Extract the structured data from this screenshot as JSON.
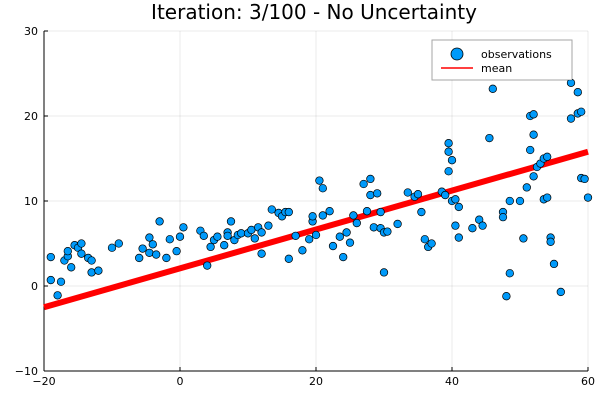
{
  "chart_data": {
    "type": "scatter",
    "title": "Iteration: 3/100 - No Uncertainty",
    "xlabel": "",
    "ylabel": "",
    "xlim": [
      -20,
      60
    ],
    "ylim": [
      -10,
      30
    ],
    "xticks": [
      -20,
      0,
      20,
      40,
      60
    ],
    "yticks": [
      -10,
      0,
      10,
      20,
      30
    ],
    "grid": true,
    "legend_position": "top-right",
    "series": [
      {
        "name": "observations",
        "kind": "scatter",
        "color": "#009AFA",
        "points": [
          [
            -19,
            0.7
          ],
          [
            -19,
            3.4
          ],
          [
            -18,
            -1.1
          ],
          [
            -17.5,
            0.5
          ],
          [
            -17,
            3.0
          ],
          [
            -16.5,
            3.5
          ],
          [
            -16.5,
            4.1
          ],
          [
            -16,
            2.2
          ],
          [
            -15.5,
            4.8
          ],
          [
            -15,
            4.5
          ],
          [
            -14.5,
            5.0
          ],
          [
            -14.5,
            3.8
          ],
          [
            -13.5,
            3.3
          ],
          [
            -13,
            1.6
          ],
          [
            -13,
            3.0
          ],
          [
            -12,
            1.8
          ],
          [
            -10,
            4.5
          ],
          [
            -9,
            5.0
          ],
          [
            -6,
            3.3
          ],
          [
            -5.5,
            4.4
          ],
          [
            -4.5,
            5.7
          ],
          [
            -4.5,
            3.9
          ],
          [
            -4,
            4.9
          ],
          [
            -3.5,
            3.7
          ],
          [
            -3,
            7.6
          ],
          [
            -2,
            3.3
          ],
          [
            -1.5,
            5.5
          ],
          [
            -0.5,
            4.1
          ],
          [
            0,
            5.8
          ],
          [
            0.5,
            6.9
          ],
          [
            3,
            6.5
          ],
          [
            3.5,
            5.9
          ],
          [
            4,
            2.4
          ],
          [
            4.5,
            4.6
          ],
          [
            5,
            5.4
          ],
          [
            5.5,
            5.8
          ],
          [
            6.5,
            4.8
          ],
          [
            7,
            6.3
          ],
          [
            7,
            5.9
          ],
          [
            7.5,
            7.6
          ],
          [
            8,
            5.4
          ],
          [
            8.5,
            6.0
          ],
          [
            9,
            6.2
          ],
          [
            10,
            6.2
          ],
          [
            10.5,
            6.6
          ],
          [
            11,
            5.6
          ],
          [
            11.5,
            6.9
          ],
          [
            12,
            6.3
          ],
          [
            12,
            3.8
          ],
          [
            13,
            7.1
          ],
          [
            13.5,
            9.0
          ],
          [
            14.5,
            8.6
          ],
          [
            15,
            8.2
          ],
          [
            15.5,
            8.7
          ],
          [
            16,
            8.7
          ],
          [
            16,
            3.2
          ],
          [
            17,
            5.9
          ],
          [
            18,
            4.2
          ],
          [
            19,
            5.5
          ],
          [
            19.5,
            7.6
          ],
          [
            19.5,
            8.2
          ],
          [
            20,
            6.0
          ],
          [
            20.5,
            12.4
          ],
          [
            21,
            11.5
          ],
          [
            21,
            8.3
          ],
          [
            22,
            8.8
          ],
          [
            22.5,
            4.7
          ],
          [
            23.5,
            5.8
          ],
          [
            24,
            3.4
          ],
          [
            24.5,
            6.3
          ],
          [
            25,
            5.1
          ],
          [
            25.5,
            8.3
          ],
          [
            26,
            7.4
          ],
          [
            27,
            12.0
          ],
          [
            27.5,
            8.8
          ],
          [
            28,
            12.6
          ],
          [
            28,
            10.7
          ],
          [
            28.5,
            6.9
          ],
          [
            29,
            10.9
          ],
          [
            29.5,
            6.8
          ],
          [
            29.5,
            8.7
          ],
          [
            30,
            6.3
          ],
          [
            30,
            1.6
          ],
          [
            30.5,
            6.4
          ],
          [
            32,
            7.3
          ],
          [
            33.5,
            11.0
          ],
          [
            34.5,
            10.5
          ],
          [
            35,
            10.8
          ],
          [
            35.5,
            8.7
          ],
          [
            36,
            5.5
          ],
          [
            36.5,
            4.6
          ],
          [
            37,
            5.0
          ],
          [
            38.5,
            11.1
          ],
          [
            39,
            10.7
          ],
          [
            39.5,
            16.8
          ],
          [
            39.5,
            15.8
          ],
          [
            39.5,
            13.5
          ],
          [
            40,
            14.8
          ],
          [
            40,
            10.0
          ],
          [
            40.5,
            7.1
          ],
          [
            40.5,
            10.2
          ],
          [
            41,
            9.3
          ],
          [
            41,
            5.7
          ],
          [
            43,
            6.8
          ],
          [
            44,
            7.8
          ],
          [
            44.5,
            7.1
          ],
          [
            45.5,
            17.4
          ],
          [
            46,
            23.2
          ],
          [
            47.5,
            8.7
          ],
          [
            47.5,
            8.1
          ],
          [
            48,
            -1.2
          ],
          [
            48.5,
            1.5
          ],
          [
            48.5,
            10.0
          ],
          [
            50,
            10.0
          ],
          [
            50.5,
            5.6
          ],
          [
            51,
            11.6
          ],
          [
            51.5,
            20.0
          ],
          [
            51.5,
            16.0
          ],
          [
            52,
            20.2
          ],
          [
            52,
            17.8
          ],
          [
            52,
            12.9
          ],
          [
            52.5,
            14.0
          ],
          [
            53,
            14.4
          ],
          [
            53.5,
            15.0
          ],
          [
            53.5,
            10.2
          ],
          [
            54,
            15.2
          ],
          [
            54,
            10.4
          ],
          [
            54.5,
            5.7
          ],
          [
            54.5,
            5.2
          ],
          [
            55,
            2.6
          ],
          [
            56,
            -0.7
          ],
          [
            57.5,
            23.9
          ],
          [
            57.5,
            19.7
          ],
          [
            58.5,
            20.3
          ],
          [
            58.5,
            22.8
          ],
          [
            59,
            12.7
          ],
          [
            59,
            20.5
          ],
          [
            59.5,
            12.6
          ],
          [
            60,
            10.4
          ]
        ]
      },
      {
        "name": "mean",
        "kind": "line",
        "color": "#FF0000",
        "x": [
          -20,
          60
        ],
        "y": [
          -2.5,
          15.8
        ]
      }
    ]
  }
}
